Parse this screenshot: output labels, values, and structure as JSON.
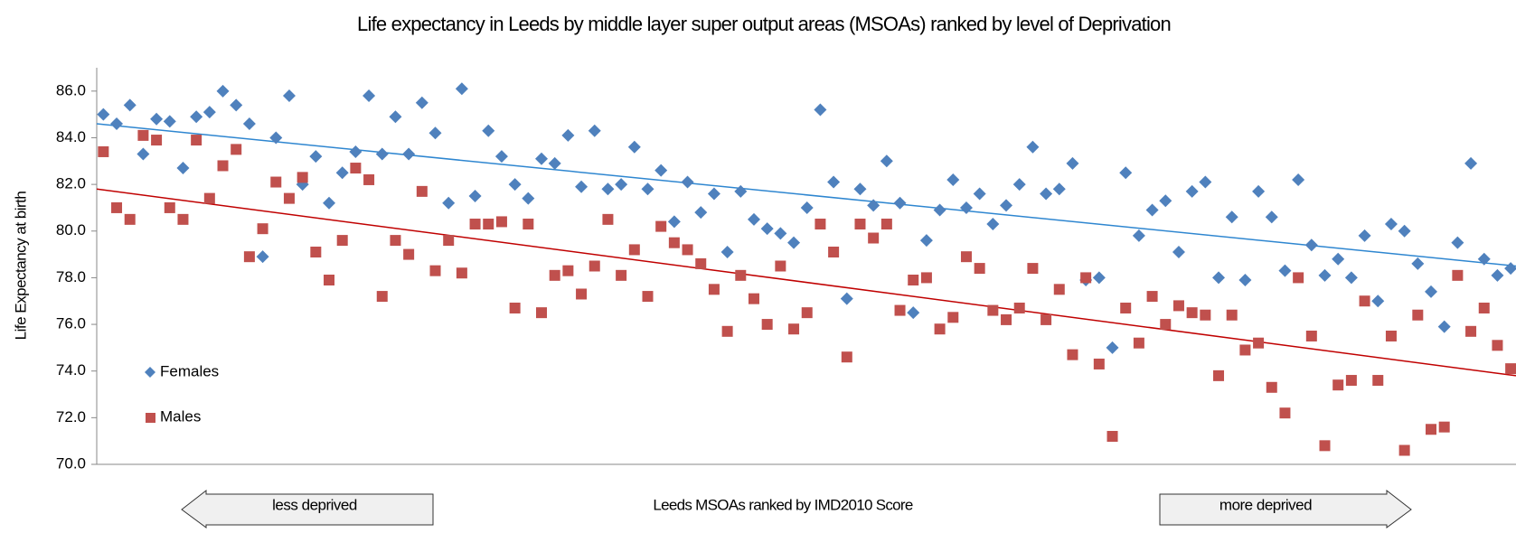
{
  "chart_data": {
    "type": "scatter",
    "title": "Life expectancy in  Leeds by middle layer super output areas (MSOAs) ranked by level of Deprivation",
    "ylabel": "Life Expectancy at birth",
    "xlabel": "Leeds MSOAs ranked by IMD2010 Score",
    "annotations": [
      "less deprived",
      "more deprived"
    ],
    "x": [
      1,
      2,
      3,
      4,
      5,
      6,
      7,
      8,
      9,
      10,
      11,
      12,
      13,
      14,
      15,
      16,
      17,
      18,
      19,
      20,
      21,
      22,
      23,
      24,
      25,
      26,
      27,
      28,
      29,
      30,
      31,
      32,
      33,
      34,
      35,
      36,
      37,
      38,
      39,
      40,
      41,
      42,
      43,
      44,
      45,
      46,
      47,
      48,
      49,
      50,
      51,
      52,
      53,
      54,
      55,
      56,
      57,
      58,
      59,
      60,
      61,
      62,
      63,
      64,
      65,
      66,
      67,
      68,
      69,
      70,
      71,
      72,
      73,
      74,
      75,
      76,
      77,
      78,
      79,
      80,
      81,
      82,
      83,
      84,
      85,
      86,
      87,
      88,
      89,
      90,
      91,
      92,
      93,
      94,
      95,
      96,
      97,
      98,
      99,
      100,
      101,
      102,
      103,
      104,
      105,
      106,
      107
    ],
    "xlim": [
      0.5,
      107.4
    ],
    "ylim": [
      70,
      87
    ],
    "yticks": [
      {
        "value": 70,
        "label": "70.0"
      },
      {
        "value": 72,
        "label": "72.0"
      },
      {
        "value": 74,
        "label": "74.0"
      },
      {
        "value": 76,
        "label": "76.0"
      },
      {
        "value": 78,
        "label": "78.0"
      },
      {
        "value": 80,
        "label": "80.0"
      },
      {
        "value": 82,
        "label": "82.0"
      },
      {
        "value": 84,
        "label": "84.0"
      },
      {
        "value": 86,
        "label": "86.0"
      }
    ],
    "legend": "center left",
    "series": [
      {
        "name": "Females",
        "color": "#4f81bd",
        "marker": "diamond",
        "trend": {
          "color": "#2e86d0",
          "x": [
            0.5,
            107.4
          ],
          "values": [
            84.6,
            78.5
          ]
        },
        "values": [
          85.0,
          84.6,
          85.4,
          83.3,
          84.8,
          84.7,
          82.7,
          84.9,
          85.1,
          86.0,
          85.4,
          84.6,
          78.9,
          84.0,
          85.8,
          82.0,
          83.2,
          81.2,
          82.5,
          83.4,
          85.8,
          83.3,
          84.9,
          83.3,
          85.5,
          84.2,
          81.2,
          86.1,
          81.5,
          84.3,
          83.2,
          82.0,
          81.4,
          83.1,
          82.9,
          84.1,
          81.9,
          84.3,
          81.8,
          82.0,
          83.6,
          81.8,
          82.6,
          80.4,
          82.1,
          80.8,
          81.6,
          79.1,
          81.7,
          80.5,
          80.1,
          79.9,
          79.5,
          81.0,
          85.2,
          82.1,
          77.1,
          81.8,
          81.1,
          83.0,
          81.2,
          76.5,
          79.6,
          80.9,
          82.2,
          81.0,
          81.6,
          80.3,
          81.1,
          82.0,
          83.6,
          81.6,
          81.8,
          82.9,
          77.9,
          78.0,
          75.0,
          82.5,
          79.8,
          80.9,
          81.3,
          79.1,
          81.7,
          82.1,
          78.0,
          80.6,
          77.9,
          81.7,
          80.6,
          78.3,
          82.2,
          79.4,
          78.1,
          78.8,
          78.0,
          79.8,
          77.0,
          80.3,
          80.0,
          78.6,
          77.4,
          75.9,
          79.5,
          82.9,
          78.8,
          78.1,
          78.4
        ]
      },
      {
        "name": "Males",
        "color": "#c0504d",
        "marker": "square",
        "trend": {
          "color": "#c00000",
          "x": [
            0.5,
            107.4
          ],
          "values": [
            81.8,
            73.8
          ]
        },
        "values": [
          83.4,
          81.0,
          80.5,
          84.1,
          83.9,
          81.0,
          80.5,
          83.9,
          81.4,
          82.8,
          83.5,
          78.9,
          80.1,
          82.1,
          81.4,
          82.3,
          79.1,
          77.9,
          79.6,
          82.7,
          82.2,
          77.2,
          79.6,
          79.0,
          81.7,
          78.3,
          79.6,
          78.2,
          80.3,
          80.3,
          80.4,
          76.7,
          80.3,
          76.5,
          78.1,
          78.3,
          77.3,
          78.5,
          80.5,
          78.1,
          79.2,
          77.2,
          80.2,
          79.5,
          79.2,
          78.6,
          77.5,
          75.7,
          78.1,
          77.1,
          76.0,
          78.5,
          75.8,
          76.5,
          80.3,
          79.1,
          74.6,
          80.3,
          79.7,
          80.3,
          76.6,
          77.9,
          78.0,
          75.8,
          76.3,
          78.9,
          78.4,
          76.6,
          76.2,
          76.7,
          78.4,
          76.2,
          77.5,
          74.7,
          78.0,
          74.3,
          71.2,
          76.7,
          75.2,
          77.2,
          76.0,
          76.8,
          76.5,
          76.4,
          73.8,
          76.4,
          74.9,
          75.2,
          73.3,
          72.2,
          78.0,
          75.5,
          70.8,
          73.4,
          73.6,
          77.0,
          73.6,
          75.5,
          70.6,
          76.4,
          71.5,
          71.6,
          78.1,
          75.7,
          76.7,
          75.1,
          74.1
        ]
      }
    ]
  }
}
